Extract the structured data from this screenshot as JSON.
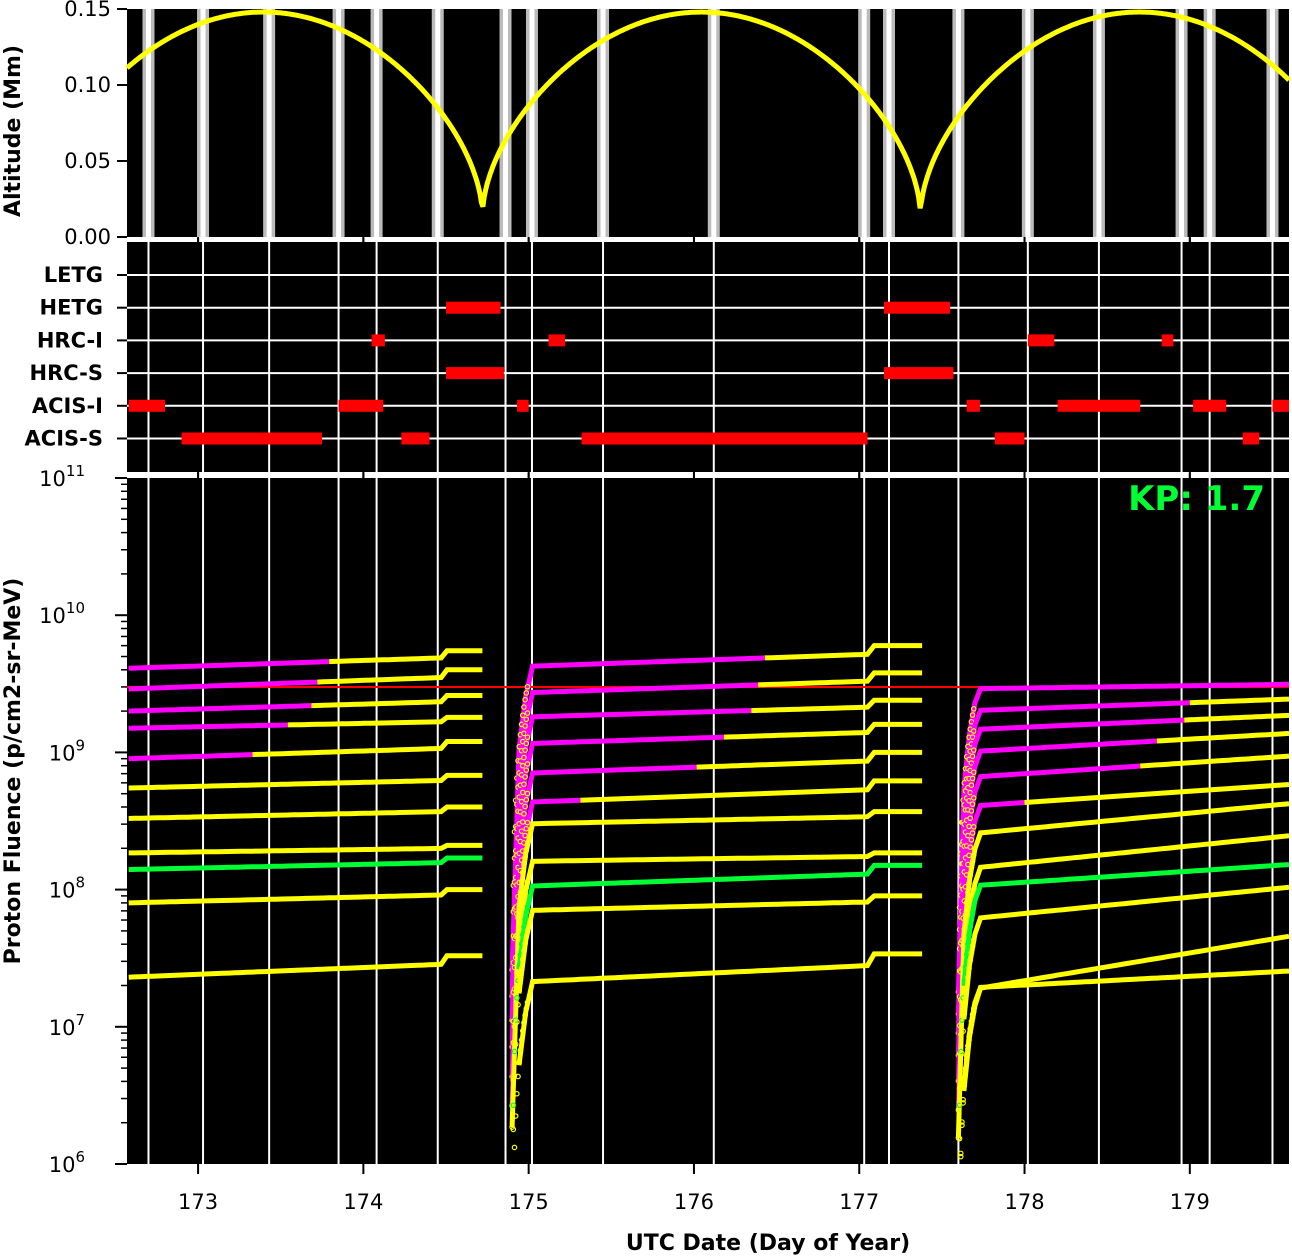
{
  "chart_data": {
    "type": "line",
    "x_range": [
      172.57,
      179.6
    ],
    "x_ticks": [
      173,
      174,
      175,
      176,
      177,
      178,
      179
    ],
    "x_tick_labels": [
      "173",
      "174",
      "175",
      "176",
      "177",
      "178",
      "179"
    ],
    "xlabel": "UTC Date (Day of Year)",
    "kp_label": "KP: 1.7",
    "gap_lines": [
      172.7,
      173.03,
      173.43,
      173.85,
      174.08,
      174.45,
      174.86,
      175.02,
      175.45,
      176.12,
      177.03,
      177.18,
      177.6,
      178.02,
      178.45,
      178.95,
      179.12,
      179.5
    ],
    "altitude": {
      "ylabel": "Altitude (Mm)",
      "ylim": [
        0,
        0.15
      ],
      "y_ticks": [
        0.0,
        0.05,
        0.1,
        0.15
      ],
      "y_tick_labels": [
        "0.00",
        "0.05",
        "0.10",
        "0.15"
      ],
      "perigees": [
        174.72,
        177.37
      ],
      "apogee": 0.148,
      "perigee_alt": 0.014,
      "color": "#ffff00",
      "bands": [
        172.7,
        173.03,
        173.43,
        173.85,
        174.08,
        174.45,
        174.86,
        175.02,
        175.45,
        176.12,
        177.03,
        177.18,
        177.6,
        178.02,
        178.45,
        178.95,
        179.12,
        179.5
      ]
    },
    "instruments": {
      "names": [
        "LETG",
        "HETG",
        "HRC-I",
        "HRC-S",
        "ACIS-I",
        "ACIS-S"
      ],
      "color": "#ff0000",
      "intervals": {
        "LETG": [],
        "HETG": [
          [
            174.5,
            174.83
          ],
          [
            177.15,
            177.55
          ]
        ],
        "HRC-I": [
          [
            174.05,
            174.13
          ],
          [
            175.12,
            175.22
          ],
          [
            178.02,
            178.18
          ],
          [
            178.83,
            178.9
          ]
        ],
        "HRC-S": [
          [
            174.5,
            174.85
          ],
          [
            177.15,
            177.57
          ]
        ],
        "ACIS-I": [
          [
            172.58,
            172.8
          ],
          [
            173.85,
            174.12
          ],
          [
            174.93,
            175.0
          ],
          [
            177.65,
            177.73
          ],
          [
            178.2,
            178.7
          ],
          [
            179.02,
            179.22
          ],
          [
            179.5,
            179.6
          ]
        ],
        "ACIS-S": [
          [
            172.9,
            173.75
          ],
          [
            174.23,
            174.4
          ],
          [
            175.32,
            177.05
          ],
          [
            177.82,
            178.0
          ],
          [
            179.32,
            179.42
          ]
        ]
      }
    },
    "fluence": {
      "ylabel": "Proton Fluence (p/cm2-sr-MeV)",
      "scale": "log",
      "ylim": [
        1000000.0,
        100000000000.0
      ],
      "y_ticks": [
        1000000.0,
        10000000.0,
        100000000.0,
        1000000000.0,
        10000000000.0,
        100000000000.0
      ],
      "y_tick_bases": [
        "10",
        "10",
        "10",
        "10",
        "10",
        "10"
      ],
      "y_tick_exponents": [
        "6",
        "7",
        "8",
        "9",
        "10",
        "11"
      ],
      "threshold": 3000000000.0,
      "threshold_color": "#ff0000",
      "orbits": [
        {
          "start": 172.58,
          "end": 174.72,
          "reset_day": 174.48
        },
        {
          "start": 174.9,
          "end": 177.38,
          "reset_day": 177.08
        },
        {
          "start": 177.6,
          "end": 179.6,
          "reset_day": 179.6
        }
      ],
      "series": [
        {
          "levels": [
            [
              4100000000.0,
              5500000000.0
            ],
            [
              4200000000.0,
              6000000000.0
            ],
            [
              2900000000.0,
              3300000000.0
            ]
          ],
          "magenta_until": [
            173.8,
            176.45,
            179.6
          ],
          "green": false
        },
        {
          "levels": [
            [
              2900000000.0,
              4000000000.0
            ],
            [
              2700000000.0,
              3800000000.0
            ],
            [
              2000000000.0,
              2800000000.0
            ]
          ],
          "magenta_until": [
            173.75,
            176.4,
            179.0
          ],
          "green": false
        },
        {
          "levels": [
            [
              2000000000.0,
              2600000000.0
            ],
            [
              1800000000.0,
              2400000000.0
            ],
            [
              1450000000.0,
              2200000000.0
            ]
          ],
          "magenta_until": [
            173.7,
            176.35,
            178.99
          ],
          "green": false
        },
        {
          "levels": [
            [
              1500000000.0,
              1800000000.0
            ],
            [
              1150000000.0,
              1600000000.0
            ],
            [
              1000000000.0,
              1700000000.0
            ]
          ],
          "magenta_until": [
            173.55,
            176.22,
            178.8
          ],
          "green": false
        },
        {
          "levels": [
            [
              900000000.0,
              1200000000.0
            ],
            [
              700000000.0,
              1000000000.0
            ],
            [
              650000000.0,
              1200000000.0
            ]
          ],
          "magenta_until": [
            173.35,
            176.05,
            178.7
          ],
          "green": false
        },
        {
          "levels": [
            [
              550000000.0,
              680000000.0
            ],
            [
              430000000.0,
              620000000.0
            ],
            [
              400000000.0,
              750000000.0
            ]
          ],
          "magenta_until": [
            0,
            175.35,
            178.0
          ],
          "green": false
        },
        {
          "levels": [
            [
              330000000.0,
              400000000.0
            ],
            [
              300000000.0,
              370000000.0
            ],
            [
              250000000.0,
              600000000.0
            ]
          ],
          "magenta_until": [
            0,
            0,
            0
          ],
          "green": false
        },
        {
          "levels": [
            [
              185000000.0,
              210000000.0
            ],
            [
              160000000.0,
              185000000.0
            ],
            [
              140000000.0,
              360000000.0
            ]
          ],
          "magenta_until": [
            0,
            0,
            0
          ],
          "green": false
        },
        {
          "levels": [
            [
              140000000.0,
              170000000.0
            ],
            [
              105000000.0,
              150000000.0
            ],
            [
              105000000.0,
              195000000.0
            ]
          ],
          "magenta_until": [
            0,
            0,
            0
          ],
          "green": true
        },
        {
          "levels": [
            [
              80000000.0,
              100000000.0
            ],
            [
              70000000.0,
              90000000.0
            ],
            [
              60000000.0,
              150000000.0
            ]
          ],
          "magenta_until": [
            0,
            0,
            0
          ],
          "green": false
        },
        {
          "levels": [
            [
              23000000.0,
              33000000.0
            ],
            [
              21000000.0,
              34000000.0
            ],
            [
              18000000.0,
              85000000.0
            ]
          ],
          "magenta_until": [
            0,
            0,
            0
          ],
          "green": false
        },
        {
          "levels": [
            [
              0,
              0
            ],
            [
              0,
              0
            ],
            [
              19000000.0,
              31000000.0
            ]
          ],
          "magenta_until": [
            0,
            0,
            0
          ],
          "green": false
        }
      ]
    }
  }
}
